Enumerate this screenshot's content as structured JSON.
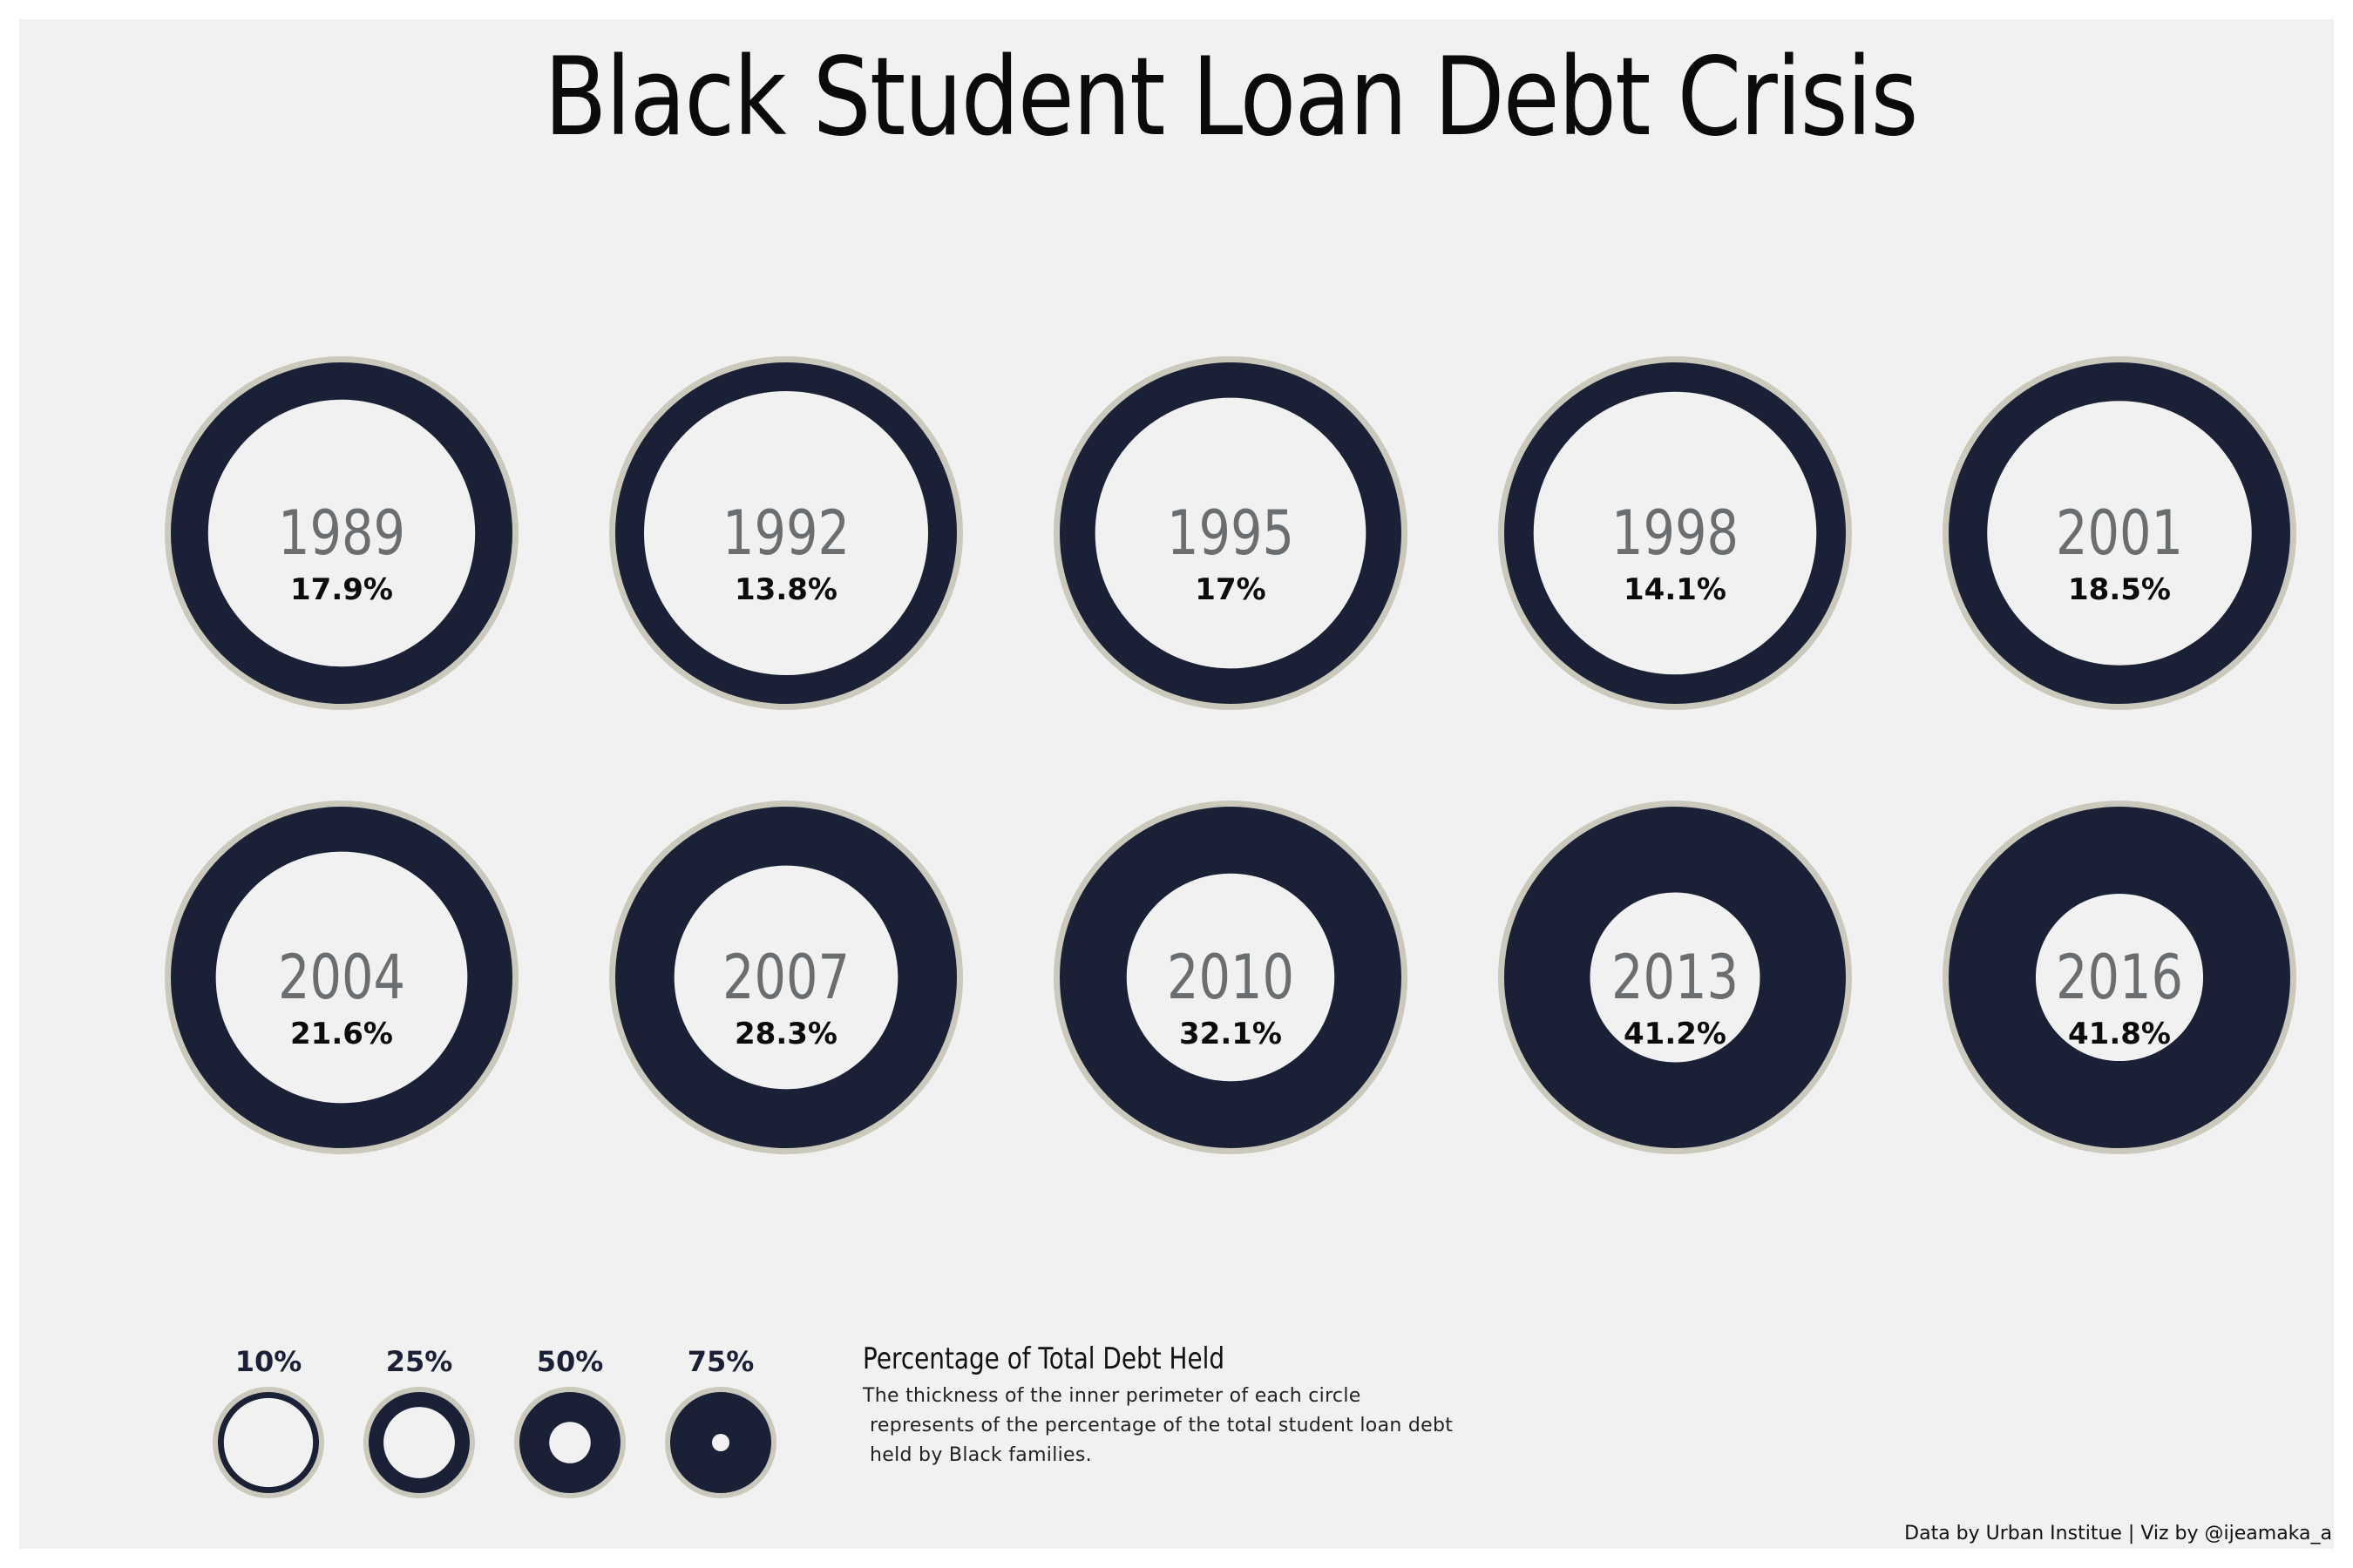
{
  "title": "Black Student Loan Debt Crisis",
  "colors": {
    "ring": "#1a2035",
    "outline": "#cbc9bc",
    "panel": "#f1f1f1",
    "year_text": "#6b6e70",
    "pct_text": "#0b0b0b"
  },
  "chart_data": {
    "type": "donut-grid",
    "title": "Black Student Loan Debt Crisis",
    "value_unit": "percent of total student loan debt held by Black families",
    "items": [
      {
        "year": "1989",
        "value": 17.9,
        "label": "17.9%"
      },
      {
        "year": "1992",
        "value": 13.8,
        "label": "13.8%"
      },
      {
        "year": "1995",
        "value": 17.0,
        "label": "17%"
      },
      {
        "year": "1998",
        "value": 14.1,
        "label": "14.1%"
      },
      {
        "year": "2001",
        "value": 18.5,
        "label": "18.5%"
      },
      {
        "year": "2004",
        "value": 21.6,
        "label": "21.6%"
      },
      {
        "year": "2007",
        "value": 28.3,
        "label": "28.3%"
      },
      {
        "year": "2010",
        "value": 32.1,
        "label": "32.1%"
      },
      {
        "year": "2013",
        "value": 41.2,
        "label": "41.2%"
      },
      {
        "year": "2016",
        "value": 41.8,
        "label": "41.8%"
      }
    ],
    "legend": {
      "title": "Percentage of Total Debt Held",
      "description": [
        "The thickness of the inner perimeter of each circle",
        " represents of the percentage of the total student loan debt",
        " held by Black families."
      ],
      "items": [
        {
          "value": 10,
          "label": "10%"
        },
        {
          "value": 25,
          "label": "25%"
        },
        {
          "value": 50,
          "label": "50%"
        },
        {
          "value": 75,
          "label": "75%"
        }
      ]
    }
  },
  "credit": "Data by Urban Institue | Viz by @ijeamaka_a"
}
